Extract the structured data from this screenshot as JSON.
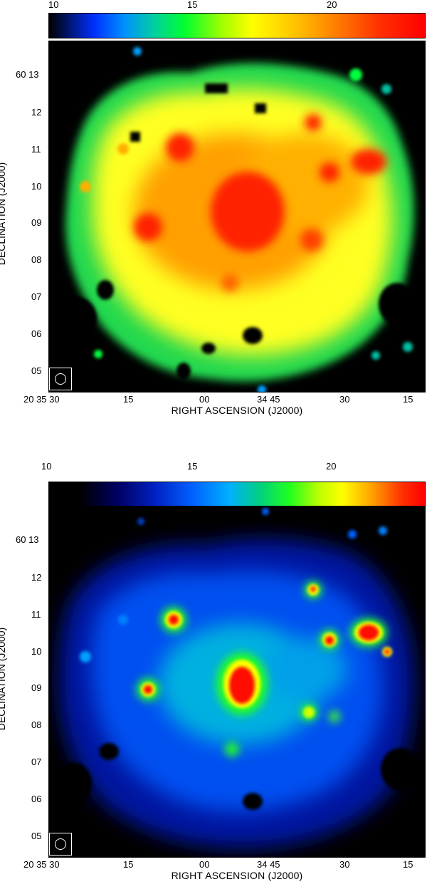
{
  "figure": {
    "panels": [
      {
        "colorbar": {
          "tick_labels": [
            "10",
            "15",
            "20"
          ],
          "colormap": "rainbow-low-contrast",
          "colors": [
            "#000000",
            "#0040ff",
            "#00c0a0",
            "#00ff00",
            "#ffff00",
            "#ff8000",
            "#ff0000"
          ]
        },
        "xlabel": "RIGHT ASCENSION (J2000)",
        "ylabel": "DECLINATION (J2000)",
        "xtick_labels": [
          "20 35 30",
          "15",
          "00",
          "34 45",
          "30",
          "15"
        ],
        "ytick_labels": [
          "60 13",
          "12",
          "11",
          "10",
          "09",
          "08",
          "07",
          "06",
          "05"
        ]
      },
      {
        "colorbar": {
          "tick_labels": [
            "10",
            "15",
            "20"
          ],
          "colormap": "rainbow-high-contrast",
          "colors": [
            "#000000",
            "#000080",
            "#0040ff",
            "#00c0ff",
            "#00ff00",
            "#ffff00",
            "#ff8000",
            "#ff0000"
          ]
        },
        "xlabel": "RIGHT ASCENSION (J2000)",
        "ylabel": "DECLINATION (J2000)",
        "xtick_labels": [
          "20 35 30",
          "15",
          "00",
          "34 45",
          "30",
          "15"
        ],
        "ytick_labels": [
          "60 13",
          "12",
          "11",
          "10",
          "09",
          "08",
          "07",
          "06",
          "05"
        ]
      }
    ]
  }
}
